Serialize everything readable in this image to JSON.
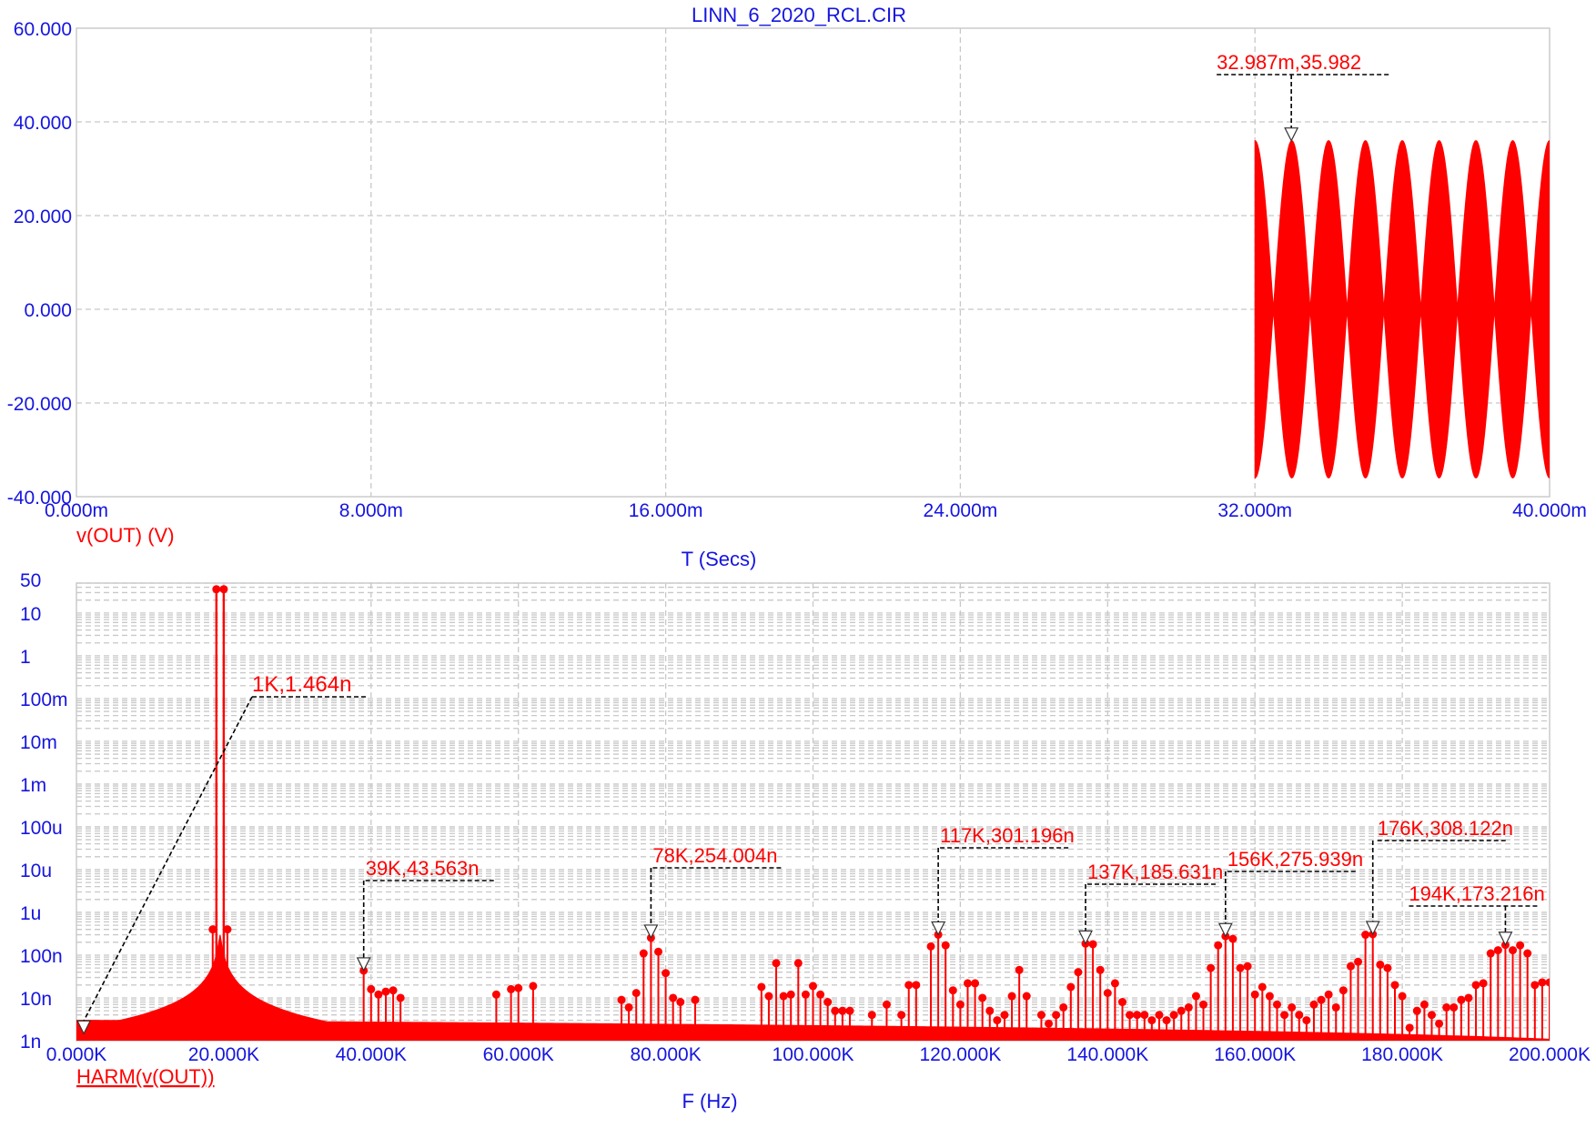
{
  "window": {
    "title": "LINN_6_2020_RCL.CIR"
  },
  "colors": {
    "axis_text": "#1515e0",
    "trace": "#ff0000",
    "grid": "#c8c8c8",
    "leader": "#000000"
  },
  "chart_data": [
    {
      "type": "line",
      "title": "LINN_6_2020_RCL.CIR",
      "xlabel": "T (Secs)",
      "ylabel": "",
      "series_label": "v(OUT) (V)",
      "xlim": [
        0,
        40
      ],
      "x_unit": "ms",
      "ylim": [
        -40,
        60
      ],
      "grid": true,
      "x_ticks": [
        "0.000m",
        "8.000m",
        "16.000m",
        "24.000m",
        "32.000m",
        "40.000m"
      ],
      "y_ticks": [
        "60.000",
        "40.000",
        "20.000",
        "0.000",
        "-20.000",
        "-40.000"
      ],
      "signal": {
        "start_ms": 32.0,
        "end_ms": 40.0,
        "amplitude": 36.0,
        "envelope_period_ms": 1.0,
        "min": -36.4
      },
      "annotations": [
        {
          "label": "32.987m,35.982",
          "x": 32.987,
          "y": 35.982
        }
      ]
    },
    {
      "type": "bar",
      "title": "",
      "xlabel": "F (Hz)",
      "ylabel": "",
      "series_label": "HARM(v(OUT))",
      "xlim": [
        0,
        200000
      ],
      "ylim": [
        1e-09,
        50
      ],
      "y_scale": "log",
      "grid": true,
      "x_ticks": [
        "0.000K",
        "20.000K",
        "40.000K",
        "60.000K",
        "80.000K",
        "100.000K",
        "120.000K",
        "140.000K",
        "160.000K",
        "180.000K",
        "200.000K"
      ],
      "y_ticks": [
        "50",
        "10",
        "1",
        "100m",
        "10m",
        "1m",
        "100u",
        "10u",
        "1u",
        "100n",
        "10n",
        "1n"
      ],
      "fundamental": {
        "freq_k": [
          19.0,
          20.0
        ],
        "value": 36
      },
      "floor": {
        "peak_k": 19.5,
        "peak_value": 3e-07,
        "tail_value": 3e-09
      },
      "harmonics": [
        {
          "f": 1,
          "v": 1.464e-09
        },
        {
          "f": 18.5,
          "v": 4e-07
        },
        {
          "f": 20.5,
          "v": 4e-07
        },
        {
          "f": 39,
          "v": 4.3563e-08
        },
        {
          "f": 40,
          "v": 1.6e-08
        },
        {
          "f": 41,
          "v": 1.2e-08
        },
        {
          "f": 42,
          "v": 1.4e-08
        },
        {
          "f": 43,
          "v": 1.5e-08
        },
        {
          "f": 44,
          "v": 1e-08
        },
        {
          "f": 57,
          "v": 1.2e-08
        },
        {
          "f": 59,
          "v": 1.6e-08
        },
        {
          "f": 60,
          "v": 1.7e-08
        },
        {
          "f": 62,
          "v": 1.9e-08
        },
        {
          "f": 74,
          "v": 9e-09
        },
        {
          "f": 75,
          "v": 6e-09
        },
        {
          "f": 76,
          "v": 1.3e-08
        },
        {
          "f": 77,
          "v": 1.1e-07
        },
        {
          "f": 78,
          "v": 2.54004e-07
        },
        {
          "f": 79,
          "v": 1.2e-07
        },
        {
          "f": 80,
          "v": 3.8e-08
        },
        {
          "f": 81,
          "v": 1e-08
        },
        {
          "f": 82,
          "v": 8e-09
        },
        {
          "f": 84,
          "v": 9e-09
        },
        {
          "f": 93,
          "v": 1.8e-08
        },
        {
          "f": 94,
          "v": 1.1e-08
        },
        {
          "f": 95,
          "v": 6.5e-08
        },
        {
          "f": 96,
          "v": 1.1e-08
        },
        {
          "f": 97,
          "v": 1.2e-08
        },
        {
          "f": 98,
          "v": 6.5e-08
        },
        {
          "f": 99,
          "v": 1.2e-08
        },
        {
          "f": 100,
          "v": 1.9e-08
        },
        {
          "f": 101,
          "v": 1.2e-08
        },
        {
          "f": 102,
          "v": 8e-09
        },
        {
          "f": 103,
          "v": 5e-09
        },
        {
          "f": 104,
          "v": 5e-09
        },
        {
          "f": 105,
          "v": 5e-09
        },
        {
          "f": 108,
          "v": 4e-09
        },
        {
          "f": 110,
          "v": 7e-09
        },
        {
          "f": 112,
          "v": 4e-09
        },
        {
          "f": 113,
          "v": 2e-08
        },
        {
          "f": 114,
          "v": 2e-08
        },
        {
          "f": 116,
          "v": 1.6e-07
        },
        {
          "f": 117,
          "v": 3.01196e-07
        },
        {
          "f": 118,
          "v": 1.7e-07
        },
        {
          "f": 119,
          "v": 1.5e-08
        },
        {
          "f": 120,
          "v": 7e-09
        },
        {
          "f": 121,
          "v": 2.2e-08
        },
        {
          "f": 122,
          "v": 2.2e-08
        },
        {
          "f": 123,
          "v": 1e-08
        },
        {
          "f": 124,
          "v": 5e-09
        },
        {
          "f": 125,
          "v": 3e-09
        },
        {
          "f": 126,
          "v": 4e-09
        },
        {
          "f": 127,
          "v": 1.1e-08
        },
        {
          "f": 128,
          "v": 4.5e-08
        },
        {
          "f": 129,
          "v": 1.1e-08
        },
        {
          "f": 131,
          "v": 4e-09
        },
        {
          "f": 132,
          "v": 2.5e-09
        },
        {
          "f": 133,
          "v": 4e-09
        },
        {
          "f": 134,
          "v": 6e-09
        },
        {
          "f": 135,
          "v": 1.8e-08
        },
        {
          "f": 136,
          "v": 4e-08
        },
        {
          "f": 137,
          "v": 1.85631e-07
        },
        {
          "f": 138,
          "v": 1.8e-07
        },
        {
          "f": 139,
          "v": 4.5e-08
        },
        {
          "f": 140,
          "v": 1.3e-08
        },
        {
          "f": 141,
          "v": 2.2e-08
        },
        {
          "f": 142,
          "v": 8e-09
        },
        {
          "f": 143,
          "v": 4e-09
        },
        {
          "f": 144,
          "v": 4e-09
        },
        {
          "f": 145,
          "v": 4e-09
        },
        {
          "f": 146,
          "v": 3e-09
        },
        {
          "f": 147,
          "v": 4e-09
        },
        {
          "f": 148,
          "v": 3e-09
        },
        {
          "f": 149,
          "v": 4e-09
        },
        {
          "f": 150,
          "v": 5e-09
        },
        {
          "f": 151,
          "v": 6e-09
        },
        {
          "f": 152,
          "v": 1.1e-08
        },
        {
          "f": 153,
          "v": 7e-09
        },
        {
          "f": 154,
          "v": 5e-08
        },
        {
          "f": 155,
          "v": 1.7e-07
        },
        {
          "f": 156,
          "v": 2.75939e-07
        },
        {
          "f": 157,
          "v": 2.4e-07
        },
        {
          "f": 158,
          "v": 5e-08
        },
        {
          "f": 159,
          "v": 5.5e-08
        },
        {
          "f": 160,
          "v": 1.2e-08
        },
        {
          "f": 161,
          "v": 1.8e-08
        },
        {
          "f": 162,
          "v": 1.1e-08
        },
        {
          "f": 163,
          "v": 7e-09
        },
        {
          "f": 164,
          "v": 4e-09
        },
        {
          "f": 165,
          "v": 6e-09
        },
        {
          "f": 166,
          "v": 4e-09
        },
        {
          "f": 167,
          "v": 3e-09
        },
        {
          "f": 168,
          "v": 7e-09
        },
        {
          "f": 169,
          "v": 9e-09
        },
        {
          "f": 170,
          "v": 1.2e-08
        },
        {
          "f": 171,
          "v": 6e-09
        },
        {
          "f": 172,
          "v": 1.5e-08
        },
        {
          "f": 173,
          "v": 5.5e-08
        },
        {
          "f": 174,
          "v": 7e-08
        },
        {
          "f": 175,
          "v": 3e-07
        },
        {
          "f": 176,
          "v": 3.08122e-07
        },
        {
          "f": 177,
          "v": 6e-08
        },
        {
          "f": 178,
          "v": 5e-08
        },
        {
          "f": 179,
          "v": 2e-08
        },
        {
          "f": 180,
          "v": 1.1e-08
        },
        {
          "f": 181,
          "v": 2e-09
        },
        {
          "f": 182,
          "v": 5e-09
        },
        {
          "f": 183,
          "v": 7e-09
        },
        {
          "f": 184,
          "v": 4e-09
        },
        {
          "f": 185,
          "v": 2.5e-09
        },
        {
          "f": 186,
          "v": 6e-09
        },
        {
          "f": 187,
          "v": 6e-09
        },
        {
          "f": 188,
          "v": 9e-09
        },
        {
          "f": 189,
          "v": 1e-08
        },
        {
          "f": 190,
          "v": 2e-08
        },
        {
          "f": 191,
          "v": 2.2e-08
        },
        {
          "f": 192,
          "v": 1.1e-07
        },
        {
          "f": 193,
          "v": 1.3e-07
        },
        {
          "f": 194,
          "v": 1.73216e-07
        },
        {
          "f": 195,
          "v": 1.3e-07
        },
        {
          "f": 196,
          "v": 1.7e-07
        },
        {
          "f": 197,
          "v": 1.1e-07
        },
        {
          "f": 198,
          "v": 2e-08
        },
        {
          "f": 199,
          "v": 2.3e-08
        },
        {
          "f": 200,
          "v": 2.3e-08
        }
      ],
      "annotations": [
        {
          "label": "1K,1.464n",
          "x": 1,
          "y": 1.464e-09
        },
        {
          "label": "39K,43.563n",
          "x": 39,
          "y": 4.3563e-08
        },
        {
          "label": "78K,254.004n",
          "x": 78,
          "y": 2.54004e-07
        },
        {
          "label": "117K,301.196n",
          "x": 117,
          "y": 3.01196e-07
        },
        {
          "label": "137K,185.631n",
          "x": 137,
          "y": 1.85631e-07
        },
        {
          "label": "156K,275.939n",
          "x": 156,
          "y": 2.75939e-07
        },
        {
          "label": "176K,308.122n",
          "x": 176,
          "y": 3.08122e-07
        },
        {
          "label": "194K,173.216n",
          "x": 194,
          "y": 1.73216e-07
        }
      ]
    }
  ]
}
